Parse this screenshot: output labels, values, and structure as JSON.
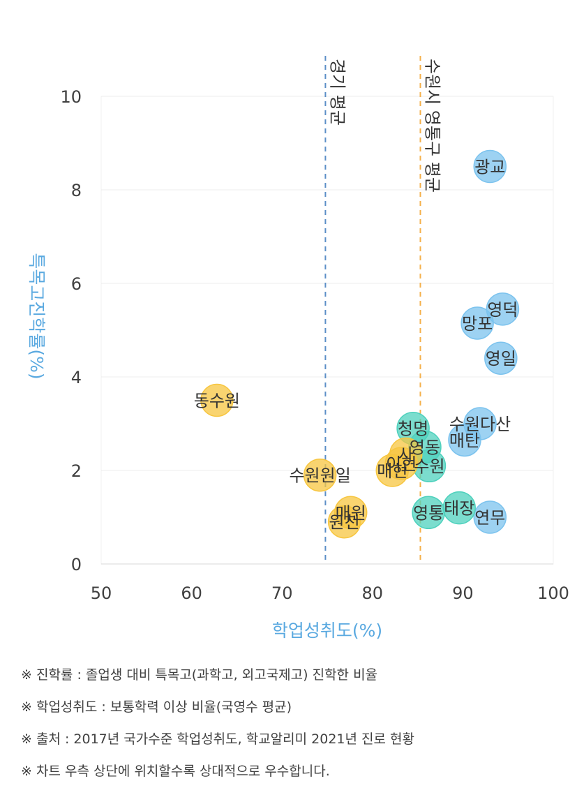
{
  "chart_data": {
    "type": "scatter",
    "xlabel": "학업성취도(%)",
    "ylabel": "특목고진학률(%)",
    "xlim": [
      50,
      100
    ],
    "ylim": [
      0,
      10
    ],
    "xticks": [
      "50",
      "60",
      "70",
      "80",
      "90",
      "100"
    ],
    "yticks": [
      "0",
      "2",
      "4",
      "6",
      "8",
      "10"
    ],
    "grid": "horizontal",
    "reference_lines": [
      {
        "label": "경기 평균",
        "x": 74.8,
        "color": "#5b8fc7"
      },
      {
        "label": "수원시 영통구 평균",
        "x": 85.3,
        "color": "#f5b04a"
      }
    ],
    "series": [
      {
        "color": "#7cc3ee",
        "points": [
          {
            "label": "광교",
            "x": 93.0,
            "y": 8.5
          },
          {
            "label": "영덕",
            "x": 94.4,
            "y": 5.45
          },
          {
            "label": "망포",
            "x": 91.6,
            "y": 5.15
          },
          {
            "label": "영일",
            "x": 94.2,
            "y": 4.4
          },
          {
            "label": "수원다산",
            "x": 91.9,
            "y": 3.0
          },
          {
            "label": "매탄",
            "x": 90.2,
            "y": 2.65
          },
          {
            "label": "연무",
            "x": 93.0,
            "y": 1.0
          }
        ]
      },
      {
        "color": "#4fd1bd",
        "points": [
          {
            "label": "청명",
            "x": 84.5,
            "y": 2.9
          },
          {
            "label": "영동",
            "x": 85.8,
            "y": 2.5
          },
          {
            "label": "수원",
            "x": 86.3,
            "y": 2.1
          },
          {
            "label": "태장",
            "x": 89.6,
            "y": 1.2
          },
          {
            "label": "영통",
            "x": 86.2,
            "y": 1.1
          }
        ]
      },
      {
        "color": "#f7c640",
        "points": [
          {
            "label": "동수원",
            "x": 62.8,
            "y": 3.5
          },
          {
            "label": "사",
            "x": 83.7,
            "y": 2.35
          },
          {
            "label": "이현",
            "x": 83.2,
            "y": 2.15
          },
          {
            "label": "매현",
            "x": 82.2,
            "y": 2.0
          },
          {
            "label": "수원원일",
            "x": 74.2,
            "y": 1.9
          },
          {
            "label": "매원",
            "x": 77.6,
            "y": 1.1
          },
          {
            "label": "원천",
            "x": 76.9,
            "y": 0.9
          }
        ]
      }
    ]
  },
  "notes": [
    "※ 진학률 : 졸업생 대비 특목고(과학고, 외고국제고) 진학한 비율",
    "※ 학업성취도 : 보통학력 이상 비율(국영수 평균)",
    "※ 출처 : 2017년 국가수준 학업성취도, 학교알리미 2021년 진로 현황",
    "※ 차트 우측 상단에 위치할수록 상대적으로 우수합니다."
  ]
}
